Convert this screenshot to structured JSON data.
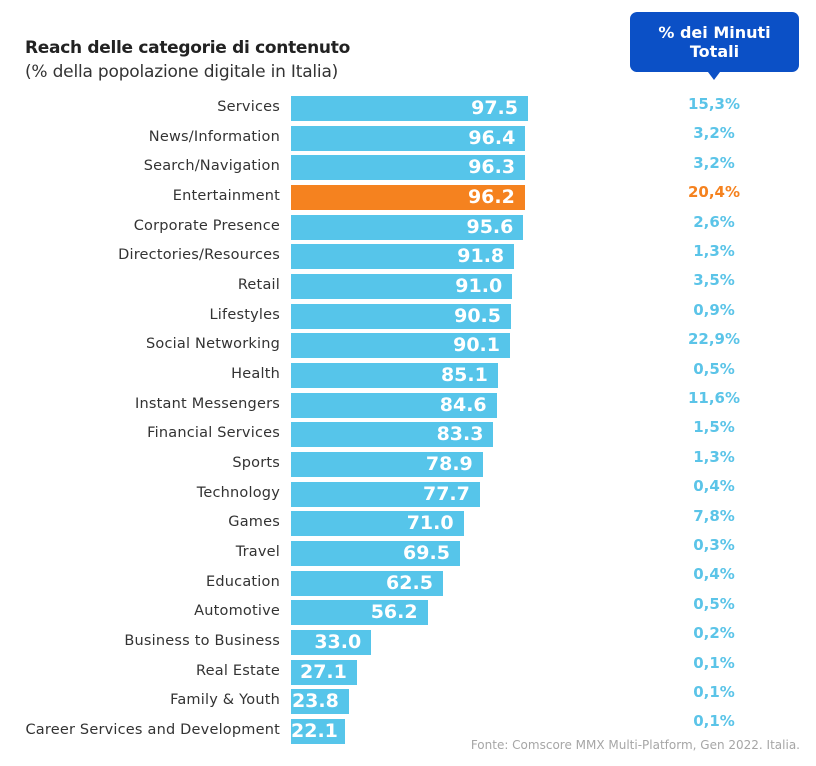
{
  "colors": {
    "bar": "#56c5ea",
    "highlight": "#f5821f",
    "pct": "#5bc4e8",
    "pct_highlight": "#f5821f",
    "callout": "#0b50c6"
  },
  "header": {
    "title": "Reach delle categorie di contenuto",
    "subtitle": "(% della popolazione digitale in Italia)",
    "callout": "% dei Minuti Totali"
  },
  "source": "Fonte: Comscore MMX Multi-Platform, Gen 2022. Italia.",
  "chart_data": {
    "type": "bar",
    "orientation": "horizontal",
    "title": "Reach delle categorie di contenuto",
    "subtitle": "(% della popolazione digitale in Italia)",
    "highlight": "Entertainment",
    "categories": [
      "Services",
      "News/Information",
      "Search/Navigation",
      "Entertainment",
      "Corporate Presence",
      "Directories/Resources",
      "Retail",
      "Lifestyles",
      "Social Networking",
      "Health",
      "Instant Messengers",
      "Financial Services",
      "Sports",
      "Technology",
      "Games",
      "Travel",
      "Education",
      "Automotive",
      "Business to Business",
      "Real Estate",
      "Family & Youth",
      "Career Services and Development"
    ],
    "values": [
      97.5,
      96.4,
      96.3,
      96.2,
      95.6,
      91.8,
      91.0,
      90.5,
      90.1,
      85.1,
      84.6,
      83.3,
      78.9,
      77.7,
      71.0,
      69.5,
      62.5,
      56.2,
      33.0,
      27.1,
      23.8,
      22.1
    ],
    "value_labels": [
      "97.5",
      "96.4",
      "96.3",
      "96.2",
      "95.6",
      "91.8",
      "91.0",
      "90.5",
      "90.1",
      "85.1",
      "84.6",
      "83.3",
      "78.9",
      "77.7",
      "71.0",
      "69.5",
      "62.5",
      "56.2",
      "33.0",
      "27.1",
      "23.8",
      "22.1"
    ],
    "minutes_share_label": "% dei Minuti Totali",
    "minutes_share": [
      "15,3%",
      "3,2%",
      "3,2%",
      "20,4%",
      "2,6%",
      "1,3%",
      "3,5%",
      "0,9%",
      "22,9%",
      "0,5%",
      "11,6%",
      "1,5%",
      "1,3%",
      "0,4%",
      "7,8%",
      "0,3%",
      "0,4%",
      "0,5%",
      "0,2%",
      "0,1%",
      "0,1%",
      "0,1%"
    ],
    "xlim": [
      0,
      100
    ],
    "grid": false,
    "legend": "none"
  }
}
